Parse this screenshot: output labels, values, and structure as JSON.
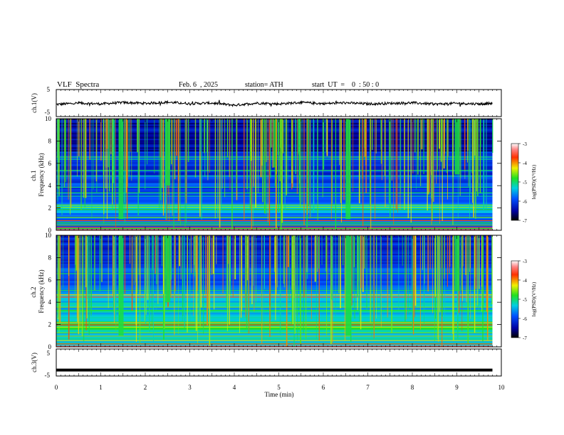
{
  "header": {
    "title": "VLF  Spectra",
    "date": "Feb. 6  , 2025",
    "station": "station= ATH",
    "start": "start  UT  =    0  : 50 : 0"
  },
  "chart_data": [
    {
      "type": "line",
      "panel": "ch1-waveform",
      "ylabel": "ch.1(V)",
      "ylim": [
        -5,
        5
      ],
      "ytick_labels": [
        "5",
        "-5"
      ],
      "x": [
        0,
        0.5,
        1,
        1.5,
        2,
        2.5,
        3,
        3.5,
        4,
        4.5,
        5,
        5.5,
        6,
        6.5,
        7,
        7.5,
        8,
        8.5,
        9,
        9.5,
        9.8
      ],
      "y": [
        -0.5,
        0,
        -0.3,
        0.2,
        -0.1,
        0.3,
        -0.2,
        0,
        -0.8,
        0,
        -0.3,
        0.2,
        -0.2,
        0.1,
        -0.3,
        -0.1,
        0.1,
        -0.4,
        -0.1,
        -0.3,
        -0.2
      ],
      "color": "#000000"
    },
    {
      "type": "heatmap",
      "panel": "ch1-spectrogram",
      "ylabel": "ch.1\nFrequency  (kHz)",
      "ylim": [
        0,
        10
      ],
      "ytick_labels": [
        "0",
        "2",
        "4",
        "6",
        "8",
        "10"
      ],
      "colorbar": {
        "label": "log(PSD)(V²/Hz)",
        "range": [
          -7,
          -3
        ],
        "tick_labels": [
          "-3",
          "-4",
          "-5",
          "-6",
          "-7"
        ]
      }
    },
    {
      "type": "heatmap",
      "panel": "ch2-spectrogram",
      "ylabel": "ch.2\nFrequency  (kHz)",
      "ylim": [
        0,
        10
      ],
      "ytick_labels": [
        "0",
        "2",
        "4",
        "6",
        "8",
        "10"
      ],
      "colorbar": {
        "label": "log(PSD)(V²/Hz)",
        "range": [
          -7,
          -3
        ],
        "tick_labels": [
          "-3",
          "-4",
          "-5",
          "-6",
          "-7"
        ]
      }
    },
    {
      "type": "line",
      "panel": "ch3-waveform",
      "ylabel": "ch.3(V)",
      "ylim": [
        -5,
        5
      ],
      "ytick_labels": [
        "5",
        "-5"
      ],
      "x": [
        0,
        9.8
      ],
      "y": [
        -2.8,
        -2.8
      ],
      "color": "#000000"
    }
  ],
  "xaxis": {
    "label": "Time  (min)",
    "range": [
      0,
      10
    ],
    "tick_labels": [
      "0",
      "1",
      "2",
      "3",
      "4",
      "5",
      "6",
      "7",
      "8",
      "9",
      "10"
    ]
  }
}
